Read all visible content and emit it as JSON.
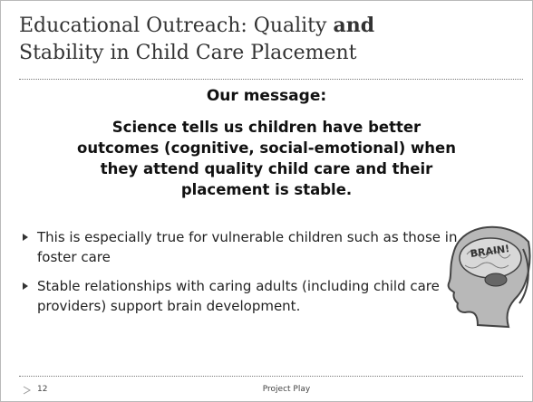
{
  "title": {
    "line1": "Educational Outreach:  Quality",
    "emphasis": "and",
    "line2": "Stability in Child Care Placement"
  },
  "message": {
    "heading": "Our message:",
    "body": "Science tells us children have better outcomes (cognitive, social-emotional) when they attend quality child care and their placement is stable."
  },
  "bullets": [
    "This is especially true for vulnerable children such as those in foster care",
    "Stable relationships with caring adults (including child care providers) support brain development."
  ],
  "image": {
    "label": "BRAIN!"
  },
  "footer": {
    "page": "12",
    "text": "Project Play"
  }
}
